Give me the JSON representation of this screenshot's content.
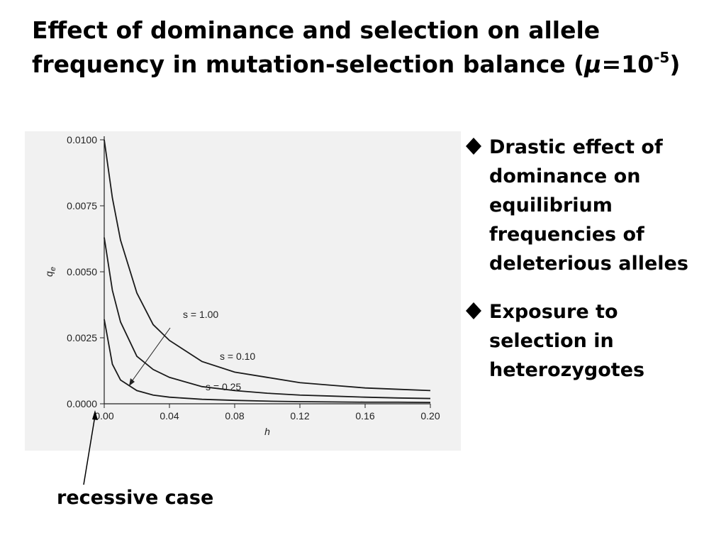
{
  "slide": {
    "title_line1": "Effect of dominance and selection on  allele",
    "title_line2": [
      "frequency in mutation-selection balance (",
      "μ",
      "=10",
      "-5",
      ")"
    ],
    "bullets": [
      [
        "Drastic effect of",
        "dominance on",
        "equilibrium",
        "frequencies of",
        "deleterious alleles"
      ],
      [
        "Exposure to",
        "selection in",
        "heterozygotes"
      ]
    ],
    "annotation": "recessive case"
  },
  "chart_data": {
    "type": "line",
    "xlabel": "h",
    "ylabel": "q",
    "ylabel_sub": "e",
    "x": [
      0,
      0.005,
      0.01,
      0.02,
      0.03,
      0.04,
      0.06,
      0.08,
      0.1,
      0.12,
      0.14,
      0.16,
      0.18,
      0.2
    ],
    "series": [
      {
        "name": "s = 1.00",
        "color": "#1a1a1a",
        "values": [
          0.0032,
          0.0015,
          0.0009,
          0.0005,
          0.00033,
          0.00025,
          0.00017,
          0.00013,
          0.0001,
          8e-05,
          7e-05,
          6e-05,
          6e-05,
          5e-05
        ]
      },
      {
        "name": "s = 0.10",
        "color": "#1a1a1a",
        "values": [
          0.01,
          0.0078,
          0.0062,
          0.0042,
          0.003,
          0.0024,
          0.0016,
          0.0012,
          0.001,
          0.0008,
          0.0007,
          0.0006,
          0.00055,
          0.0005
        ]
      },
      {
        "name": "s = 0.25",
        "color": "#1a1a1a",
        "values": [
          0.0063,
          0.0043,
          0.0031,
          0.0018,
          0.0013,
          0.001,
          0.00065,
          0.0005,
          0.0004,
          0.00033,
          0.00029,
          0.00025,
          0.00022,
          0.0002
        ]
      }
    ],
    "xlim": [
      0,
      0.2
    ],
    "xticks": [
      {
        "value": 0,
        "label": "0.00"
      },
      {
        "value": 0.04,
        "label": "0.04"
      },
      {
        "value": 0.08,
        "label": "0.08"
      },
      {
        "value": 0.12,
        "label": "0.12"
      },
      {
        "value": 0.16,
        "label": "0.16"
      },
      {
        "value": 0.2,
        "label": "0.20"
      }
    ],
    "ylim": [
      0,
      0.01
    ],
    "yticks": [
      {
        "value": 0,
        "label": "0.0000"
      },
      {
        "value": 0.0025,
        "label": "0.0025"
      },
      {
        "value": 0.005,
        "label": "0.0050"
      },
      {
        "value": 0.0075,
        "label": "0.0075"
      },
      {
        "value": 0.01,
        "label": "0.0100"
      }
    ],
    "grid": false
  }
}
